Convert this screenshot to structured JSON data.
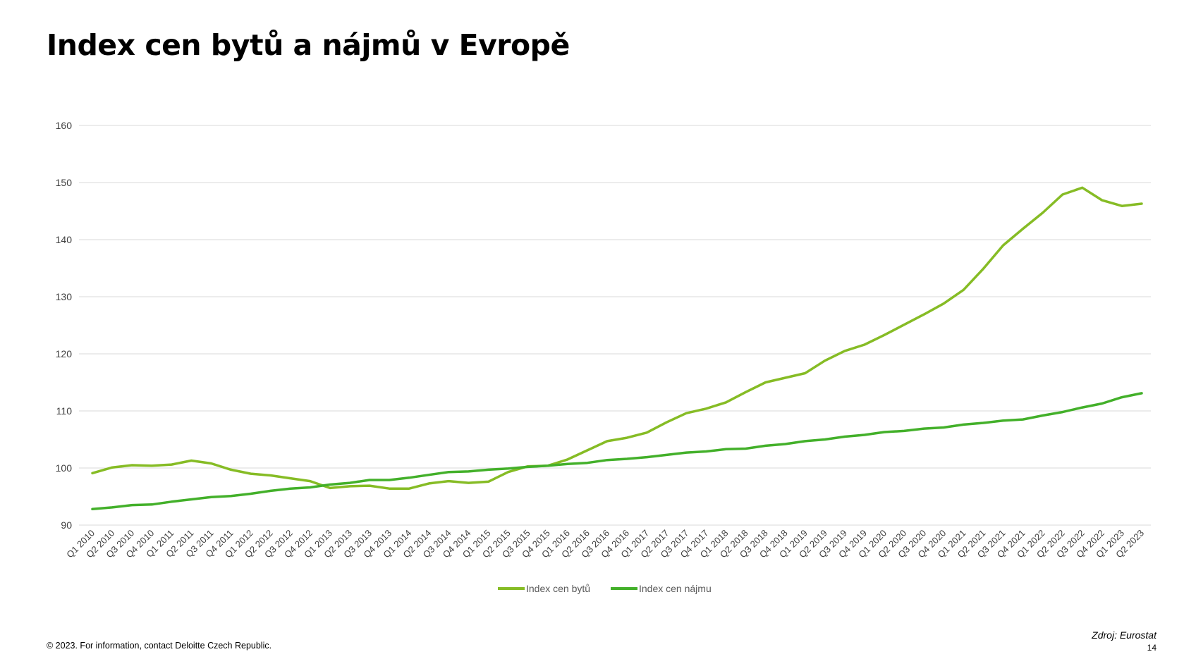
{
  "title": "Index cen bytů a nájmů v Evropě",
  "footer": {
    "copyright": "© 2023. For information, contact Deloitte Czech Republic.",
    "source": "Zdroj: Eurostat",
    "page_number": "14"
  },
  "chart_data": {
    "type": "line",
    "title": "",
    "xlabel": "",
    "ylabel": "",
    "ylim": [
      90,
      160
    ],
    "yticks": [
      90,
      100,
      110,
      120,
      130,
      140,
      150,
      160
    ],
    "grid": true,
    "legend_position": "bottom",
    "categories": [
      "Q1 2010",
      "Q2 2010",
      "Q3 2010",
      "Q4 2010",
      "Q1 2011",
      "Q2 2011",
      "Q3 2011",
      "Q4 2011",
      "Q1 2012",
      "Q2 2012",
      "Q3 2012",
      "Q4 2012",
      "Q1 2013",
      "Q2 2013",
      "Q3 2013",
      "Q4 2013",
      "Q1 2014",
      "Q2 2014",
      "Q3 2014",
      "Q4 2014",
      "Q1 2015",
      "Q2 2015",
      "Q3 2015",
      "Q4 2015",
      "Q1 2016",
      "Q2 2016",
      "Q3 2016",
      "Q4 2016",
      "Q1 2017",
      "Q2 2017",
      "Q3 2017",
      "Q4 2017",
      "Q1 2018",
      "Q2 2018",
      "Q3 2018",
      "Q4 2018",
      "Q1 2019",
      "Q2 2019",
      "Q3 2019",
      "Q4 2019",
      "Q1 2020",
      "Q2 2020",
      "Q3 2020",
      "Q4 2020",
      "Q1 2021",
      "Q2 2021",
      "Q3 2021",
      "Q4 2021",
      "Q1 2022",
      "Q2 2022",
      "Q3 2022",
      "Q4 2022",
      "Q1 2023",
      "Q2 2023"
    ],
    "series": [
      {
        "name": "Index cen bytů",
        "color": "#86bc25",
        "values": [
          99.1,
          100.1,
          100.5,
          100.4,
          100.6,
          101.3,
          100.8,
          99.7,
          99.0,
          98.7,
          98.2,
          97.7,
          96.5,
          96.8,
          96.9,
          96.4,
          96.4,
          97.3,
          97.7,
          97.4,
          97.6,
          99.3,
          100.3,
          100.4,
          101.5,
          103.1,
          104.7,
          105.3,
          106.2,
          108.0,
          109.6,
          110.4,
          111.5,
          113.3,
          115.0,
          115.8,
          116.6,
          118.8,
          120.5,
          121.6,
          123.3,
          125.1,
          126.9,
          128.8,
          131.2,
          134.9,
          139.0,
          141.9,
          144.7,
          147.9,
          149.1,
          146.9,
          145.9,
          146.3
        ]
      },
      {
        "name": "Index cen nájmu",
        "color": "#43b02a",
        "values": [
          92.8,
          93.1,
          93.5,
          93.6,
          94.1,
          94.5,
          94.9,
          95.1,
          95.5,
          96.0,
          96.4,
          96.6,
          97.1,
          97.4,
          97.9,
          97.9,
          98.3,
          98.8,
          99.3,
          99.4,
          99.7,
          99.9,
          100.2,
          100.4,
          100.7,
          100.9,
          101.4,
          101.6,
          101.9,
          102.3,
          102.7,
          102.9,
          103.3,
          103.4,
          103.9,
          104.2,
          104.7,
          105.0,
          105.5,
          105.8,
          106.3,
          106.5,
          106.9,
          107.1,
          107.6,
          107.9,
          108.3,
          108.5,
          109.2,
          109.8,
          110.6,
          111.3,
          112.4,
          113.1
        ]
      }
    ]
  }
}
